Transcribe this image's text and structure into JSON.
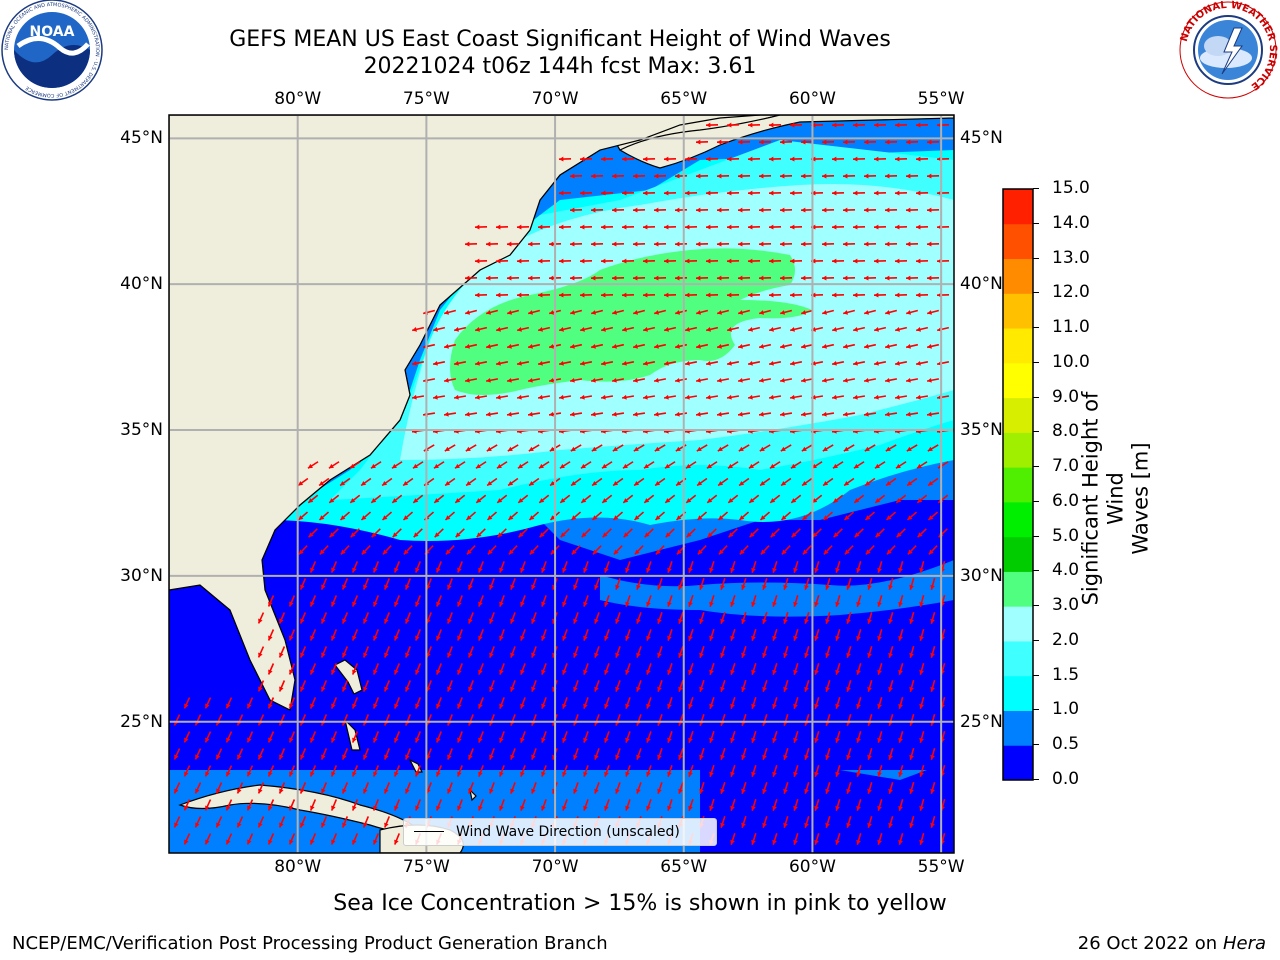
{
  "title": {
    "line1": "GEFS MEAN US East Coast Significant Height of Wind Waves",
    "line2": "20221024 t06z 144h fcst   Max: 3.61"
  },
  "logos": {
    "left": {
      "name": "NOAA",
      "ring_text": "NATIONAL OCEANIC AND ATMOSPHERIC ADMINISTRATION · U.S. DEPARTMENT OF COMMERCE"
    },
    "right": {
      "ring_text": "NATIONAL WEATHER SERVICE"
    }
  },
  "map": {
    "lon_labels": [
      "80°W",
      "75°W",
      "70°W",
      "65°W",
      "60°W",
      "55°W"
    ],
    "lat_labels": [
      "45°N",
      "40°N",
      "35°N",
      "30°N",
      "25°N"
    ],
    "lon_values": [
      -80,
      -75,
      -70,
      -65,
      -60,
      -55
    ],
    "lat_values": [
      45,
      40,
      35,
      30,
      25
    ],
    "lon_range": [
      -85,
      -54.5
    ],
    "lat_range": [
      20.5,
      45.8
    ],
    "legend_label": "Wind Wave Direction (unscaled)",
    "arrow_color": "#ff0000",
    "land_color": "#efeddc",
    "grid_color": "#b0b0b0"
  },
  "colorbar": {
    "label_line1": "Significant Height of Wind",
    "label_line2": "Waves [m]",
    "ticks": [
      "0.0",
      "0.5",
      "1.0",
      "1.5",
      "2.0",
      "3.0",
      "4.0",
      "5.0",
      "6.0",
      "7.0",
      "8.0",
      "9.0",
      "10.0",
      "11.0",
      "12.0",
      "13.0",
      "14.0",
      "15.0"
    ],
    "colors": [
      "#0000ff",
      "#0080ff",
      "#00ffff",
      "#40ffff",
      "#a0ffff",
      "#50ff80",
      "#00cc00",
      "#00ee00",
      "#50ee00",
      "#a0ee00",
      "#d8ee00",
      "#ffff00",
      "#ffea00",
      "#ffc000",
      "#ff8c00",
      "#ff5000",
      "#ff2000"
    ]
  },
  "ice_note": "Sea Ice Concentration > 15% is shown in pink to yellow",
  "footer": {
    "left": "NCEP/EMC/Verification Post Processing Product Generation Branch",
    "date": "26 Oct 2022 on ",
    "machine": "Hera"
  }
}
